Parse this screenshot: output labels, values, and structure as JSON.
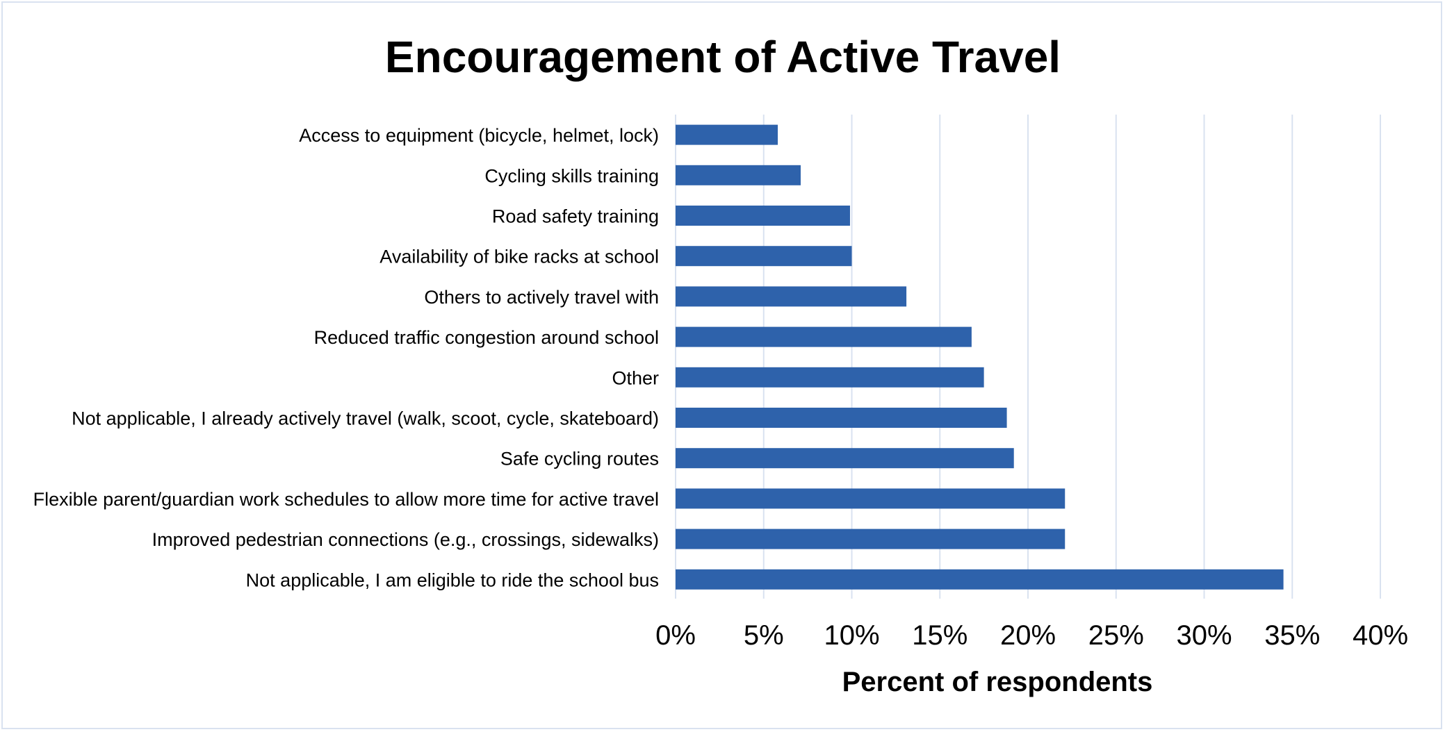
{
  "chart_data": {
    "type": "bar",
    "orientation": "horizontal",
    "title": "Encouragement of Active Travel",
    "xlabel": "Percent of respondents",
    "ylabel": "",
    "xlim": [
      0,
      40
    ],
    "xticks": [
      0,
      5,
      10,
      15,
      20,
      25,
      30,
      35,
      40
    ],
    "tick_suffix": "%",
    "grid": "vertical",
    "legend": "none",
    "bar_color": "#2e62ab",
    "grid_color": "#d9e2f0",
    "categories": [
      "Access to equipment (bicycle, helmet, lock)",
      "Cycling skills training",
      "Road safety training",
      "Availability of bike racks at school",
      "Others to actively travel with",
      "Reduced traffic congestion around school",
      "Other",
      "Not applicable, I already actively travel (walk, scoot, cycle, skateboard)",
      "Safe cycling routes",
      "Flexible parent/guardian work schedules to allow more time for active travel",
      "Improved pedestrian connections (e.g., crossings, sidewalks)",
      "Not applicable, I am eligible to ride the school bus"
    ],
    "values": [
      5.8,
      7.1,
      9.9,
      10.0,
      13.1,
      16.8,
      17.5,
      18.8,
      19.2,
      22.1,
      22.1,
      34.5
    ]
  }
}
